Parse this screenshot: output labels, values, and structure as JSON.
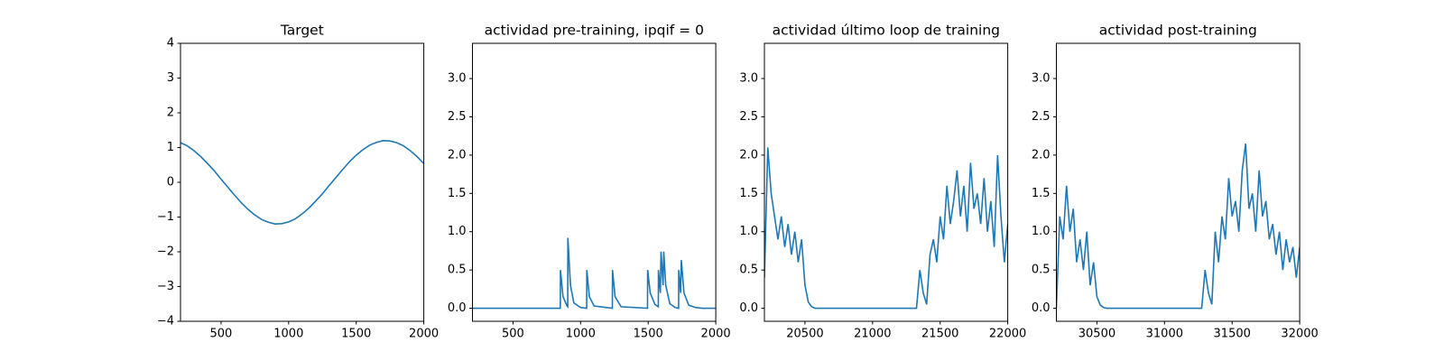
{
  "chart_data": [
    {
      "type": "line",
      "title": "Target",
      "color": "#1f77b4",
      "x": [
        200,
        250,
        300,
        350,
        400,
        450,
        500,
        550,
        600,
        650,
        700,
        750,
        800,
        850,
        900,
        950,
        1000,
        1050,
        1100,
        1150,
        1200,
        1250,
        1300,
        1350,
        1400,
        1450,
        1500,
        1550,
        1600,
        1650,
        1700,
        1750,
        1800,
        1850,
        1900,
        1950,
        2000
      ],
      "values": [
        1.14,
        1.05,
        0.91,
        0.74,
        0.54,
        0.33,
        0.09,
        -0.14,
        -0.37,
        -0.59,
        -0.78,
        -0.94,
        -1.07,
        -1.15,
        -1.2,
        -1.19,
        -1.14,
        -1.05,
        -0.91,
        -0.74,
        -0.54,
        -0.33,
        -0.09,
        0.14,
        0.37,
        0.59,
        0.78,
        0.94,
        1.07,
        1.15,
        1.2,
        1.19,
        1.14,
        1.05,
        0.91,
        0.74,
        0.54
      ],
      "xlim": [
        200,
        2000
      ],
      "xticks": [
        500,
        1000,
        1500,
        2000
      ],
      "ylim": [
        -4,
        4
      ],
      "yticks": [
        {
          "value": -4,
          "label": "−4"
        },
        {
          "value": -3,
          "label": "−3"
        },
        {
          "value": -2,
          "label": "−2"
        },
        {
          "value": -1,
          "label": "−1"
        },
        0,
        1,
        2,
        3,
        4
      ]
    },
    {
      "type": "line",
      "title": "actividad pre-training, ipqif = 0",
      "color": "#1f77b4",
      "x": [
        200,
        850,
        851,
        870,
        900,
        905,
        906,
        925,
        950,
        1000,
        1045,
        1046,
        1065,
        1100,
        1235,
        1236,
        1255,
        1300,
        1495,
        1496,
        1515,
        1550,
        1575,
        1576,
        1590,
        1595,
        1610,
        1615,
        1630,
        1660,
        1700,
        1725,
        1726,
        1740,
        1745,
        1765,
        1800,
        1850,
        1900,
        2000
      ],
      "values": [
        0,
        0,
        0.5,
        0.15,
        0.03,
        0.02,
        0.92,
        0.3,
        0.07,
        0.01,
        0,
        0.5,
        0.15,
        0.03,
        0,
        0.5,
        0.15,
        0.02,
        0,
        0.5,
        0.2,
        0.05,
        0.02,
        0.5,
        0.2,
        0.74,
        0.3,
        0.74,
        0.3,
        0.06,
        0.01,
        0,
        0.5,
        0.2,
        0.63,
        0.2,
        0.04,
        0.01,
        0,
        0
      ],
      "xlim": [
        200,
        2000
      ],
      "xticks": [
        500,
        1000,
        1500,
        2000
      ],
      "ylim": [
        -0.17,
        3.46
      ],
      "yticks": [
        {
          "value": 0,
          "label": "0.0"
        },
        {
          "value": 0.5,
          "label": "0.5"
        },
        {
          "value": 1,
          "label": "1.0"
        },
        {
          "value": 1.5,
          "label": "1.5"
        },
        {
          "value": 2,
          "label": "2.0"
        },
        {
          "value": 2.5,
          "label": "2.5"
        },
        {
          "value": 3,
          "label": "3.0"
        }
      ]
    },
    {
      "type": "line",
      "title": "actividad último loop de training",
      "color": "#1f77b4",
      "x": [
        20200,
        20225,
        20250,
        20275,
        20300,
        20325,
        20350,
        20375,
        20400,
        20425,
        20450,
        20475,
        20500,
        20525,
        20550,
        20575,
        20600,
        20625,
        20650,
        20675,
        20700,
        20725,
        20750,
        20775,
        20800,
        20825,
        20850,
        20875,
        20900,
        20925,
        20950,
        20975,
        21000,
        21025,
        21050,
        21075,
        21100,
        21125,
        21150,
        21175,
        21200,
        21225,
        21250,
        21275,
        21300,
        21325,
        21350,
        21375,
        21400,
        21425,
        21450,
        21475,
        21500,
        21525,
        21550,
        21575,
        21600,
        21625,
        21650,
        21675,
        21700,
        21725,
        21750,
        21775,
        21800,
        21825,
        21850,
        21875,
        21900,
        21925,
        21950,
        21975,
        22000
      ],
      "values": [
        0.4,
        2.1,
        1.5,
        1.2,
        0.9,
        1.2,
        0.8,
        1.1,
        0.7,
        1.0,
        0.6,
        0.9,
        0.3,
        0.08,
        0.02,
        0,
        0,
        0,
        0,
        0,
        0,
        0,
        0,
        0,
        0,
        0,
        0,
        0,
        0,
        0,
        0,
        0,
        0,
        0,
        0,
        0,
        0,
        0,
        0,
        0,
        0,
        0,
        0,
        0,
        0,
        0,
        0.5,
        0.2,
        0.05,
        0.7,
        0.9,
        0.6,
        1.2,
        0.9,
        1.6,
        1.1,
        1.4,
        1.8,
        1.2,
        1.6,
        1.0,
        1.9,
        1.3,
        1.5,
        1.1,
        1.7,
        1.0,
        1.4,
        0.8,
        2.0,
        1.2,
        0.6,
        1.1
      ],
      "xlim": [
        20200,
        22000
      ],
      "xticks": [
        20500,
        21000,
        21500,
        22000
      ],
      "ylim": [
        -0.17,
        3.46
      ],
      "yticks": [
        {
          "value": 0,
          "label": "0.0"
        },
        {
          "value": 0.5,
          "label": "0.5"
        },
        {
          "value": 1,
          "label": "1.0"
        },
        {
          "value": 1.5,
          "label": "1.5"
        },
        {
          "value": 2,
          "label": "2.0"
        },
        {
          "value": 2.5,
          "label": "2.5"
        },
        {
          "value": 3,
          "label": "3.0"
        }
      ]
    },
    {
      "type": "line",
      "title": "actividad post-training",
      "color": "#1f77b4",
      "x": [
        30200,
        30225,
        30250,
        30275,
        30300,
        30325,
        30350,
        30375,
        30400,
        30425,
        30450,
        30475,
        30500,
        30525,
        30550,
        30575,
        30600,
        30625,
        30650,
        30675,
        30700,
        30725,
        30750,
        30775,
        30800,
        30825,
        30850,
        30875,
        30900,
        30925,
        30950,
        30975,
        31000,
        31025,
        31050,
        31075,
        31100,
        31125,
        31150,
        31175,
        31200,
        31225,
        31250,
        31275,
        31300,
        31325,
        31350,
        31375,
        31400,
        31425,
        31450,
        31475,
        31500,
        31525,
        31550,
        31575,
        31600,
        31625,
        31650,
        31675,
        31700,
        31725,
        31750,
        31775,
        31800,
        31825,
        31850,
        31875,
        31900,
        31925,
        31950,
        31975,
        32000
      ],
      "values": [
        0.0,
        1.2,
        0.9,
        1.6,
        1.0,
        1.3,
        0.6,
        0.9,
        0.5,
        1.0,
        0.3,
        0.6,
        0.15,
        0.04,
        0.01,
        0,
        0,
        0,
        0,
        0,
        0,
        0,
        0,
        0,
        0,
        0,
        0,
        0,
        0,
        0,
        0,
        0,
        0,
        0,
        0,
        0,
        0,
        0,
        0,
        0,
        0,
        0,
        0,
        0,
        0.5,
        0.2,
        0.05,
        1.0,
        0.6,
        1.2,
        0.9,
        1.7,
        1.2,
        1.4,
        1.0,
        1.8,
        2.15,
        1.3,
        1.5,
        1.0,
        1.8,
        1.2,
        1.4,
        0.9,
        1.1,
        0.7,
        1.0,
        0.5,
        0.9,
        0.6,
        0.8,
        0.4,
        0.8
      ],
      "xlim": [
        30200,
        32000
      ],
      "xticks": [
        30500,
        31000,
        31500,
        32000
      ],
      "ylim": [
        -0.17,
        3.46
      ],
      "yticks": [
        {
          "value": 0,
          "label": "0.0"
        },
        {
          "value": 0.5,
          "label": "0.5"
        },
        {
          "value": 1,
          "label": "1.0"
        },
        {
          "value": 1.5,
          "label": "1.5"
        },
        {
          "value": 2,
          "label": "2.0"
        },
        {
          "value": 2.5,
          "label": "2.5"
        },
        {
          "value": 3,
          "label": "3.0"
        }
      ]
    }
  ]
}
